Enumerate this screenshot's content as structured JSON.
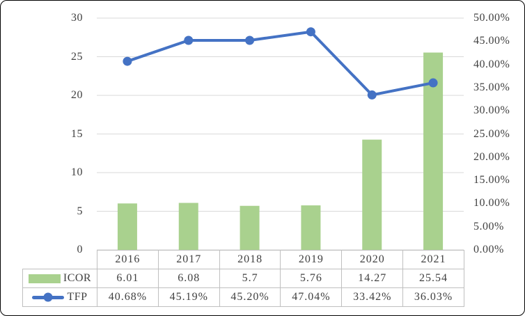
{
  "chart_data": {
    "type": "combo",
    "categories": [
      "2016",
      "2017",
      "2018",
      "2019",
      "2020",
      "2021"
    ],
    "series": [
      {
        "name": "ICOR",
        "type": "bar",
        "axis": "left",
        "color": "#a9d18e",
        "values": [
          6.01,
          6.08,
          5.7,
          5.76,
          14.27,
          25.54
        ],
        "labels": [
          "6.01",
          "6.08",
          "5.7",
          "5.76",
          "14.27",
          "25.54"
        ]
      },
      {
        "name": "TFP",
        "type": "line",
        "axis": "right",
        "color": "#4472c4",
        "values": [
          40.68,
          45.19,
          45.2,
          47.04,
          33.42,
          36.03
        ],
        "labels": [
          "40.68%",
          "45.19%",
          "45.20%",
          "47.04%",
          "33.42%",
          "36.03%"
        ]
      }
    ],
    "left_axis": {
      "min": 0,
      "max": 30,
      "step": 5,
      "ticks": [
        "0",
        "5",
        "10",
        "15",
        "20",
        "25",
        "30"
      ]
    },
    "right_axis": {
      "min": 0,
      "max": 50,
      "step": 5,
      "ticks": [
        "0.00%",
        "5.00%",
        "10.00%",
        "15.00%",
        "20.00%",
        "25.00%",
        "30.00%",
        "35.00%",
        "40.00%",
        "45.00%",
        "50.00%"
      ]
    },
    "title": "",
    "xlabel": "",
    "ylabel": "",
    "grid": true,
    "legend_position": "table-left"
  },
  "colors": {
    "grid": "#d9d9d9",
    "table_border": "#bfbfbf",
    "text": "#404040",
    "frame_border": "#000000",
    "background": "#ffffff"
  }
}
